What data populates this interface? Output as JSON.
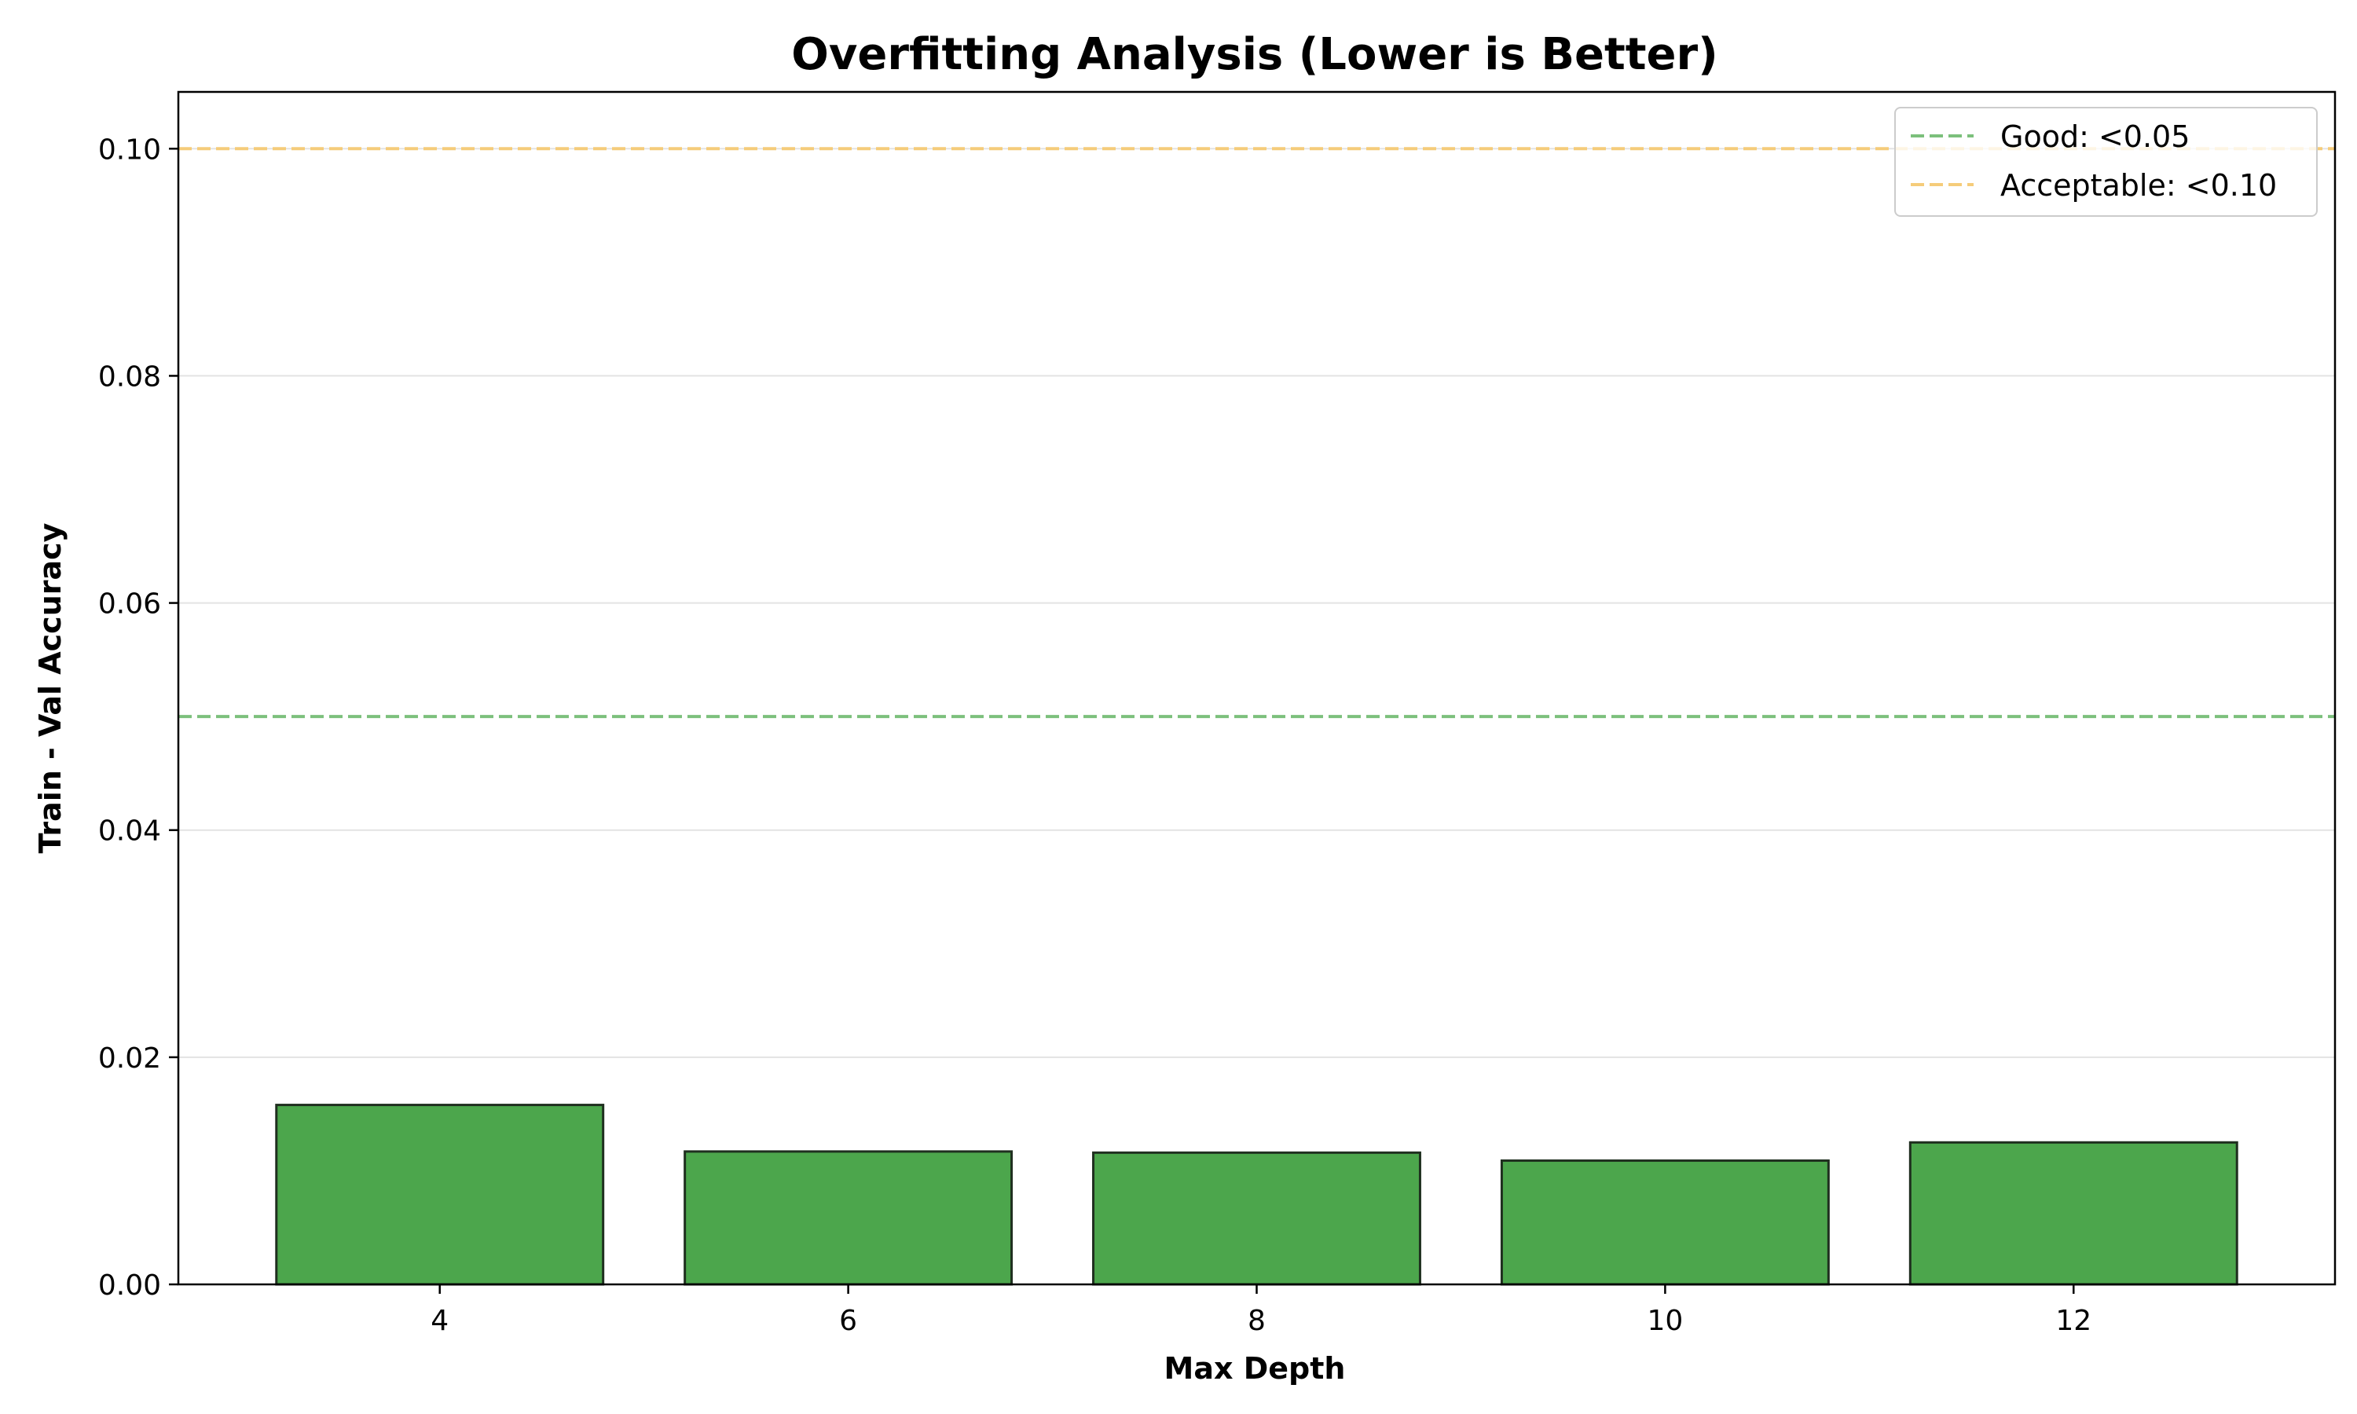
{
  "chart_data": {
    "type": "bar",
    "title": "Overfitting Analysis (Lower is Better)",
    "xlabel": "Max Depth",
    "ylabel": "Train - Val Accuracy",
    "categories": [
      "4",
      "6",
      "8",
      "10",
      "12"
    ],
    "x": [
      4,
      6,
      8,
      10,
      12
    ],
    "values": [
      0.0158,
      0.0117,
      0.0116,
      0.0109,
      0.0125
    ],
    "xlim": [
      2.72,
      13.28
    ],
    "ylim": [
      0,
      0.105
    ],
    "yticks": [
      0.0,
      0.02,
      0.04,
      0.06,
      0.08,
      0.1
    ],
    "ytick_labels": [
      "0.00",
      "0.02",
      "0.04",
      "0.06",
      "0.08",
      "0.10"
    ],
    "xticks": [
      4,
      6,
      8,
      10,
      12
    ],
    "xtick_labels": [
      "4",
      "6",
      "8",
      "10",
      "12"
    ],
    "grid": "horizontal",
    "bar_color": "#4ca64c",
    "bar_edge_color": "#1f2f1f",
    "reference_lines": [
      {
        "label": "Good: <0.05",
        "value": 0.05,
        "color": "#7cc07c",
        "style": "dashed"
      },
      {
        "label": "Acceptable: <0.10",
        "value": 0.1,
        "color": "#f5cc7a",
        "style": "dashed"
      }
    ],
    "legend": {
      "position": "top-right"
    }
  }
}
